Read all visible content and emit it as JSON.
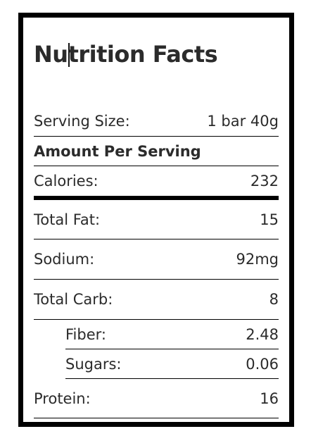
{
  "title": "Nutrition Facts",
  "serving": {
    "label": "Serving Size:",
    "value": "1 bar 40g"
  },
  "amount_per_serving": "Amount Per Serving",
  "calories": {
    "label": "Calories:",
    "value": "232"
  },
  "nutrients": [
    {
      "label": "Total Fat:",
      "value": "15"
    },
    {
      "label": "Sodium:",
      "value": "92mg"
    },
    {
      "label": "Total Carb:",
      "value": "8"
    },
    {
      "label": "Fiber:",
      "value": "2.48"
    },
    {
      "label": "Sugars:",
      "value": "0.06"
    },
    {
      "label": "Protein:",
      "value": "16"
    }
  ]
}
